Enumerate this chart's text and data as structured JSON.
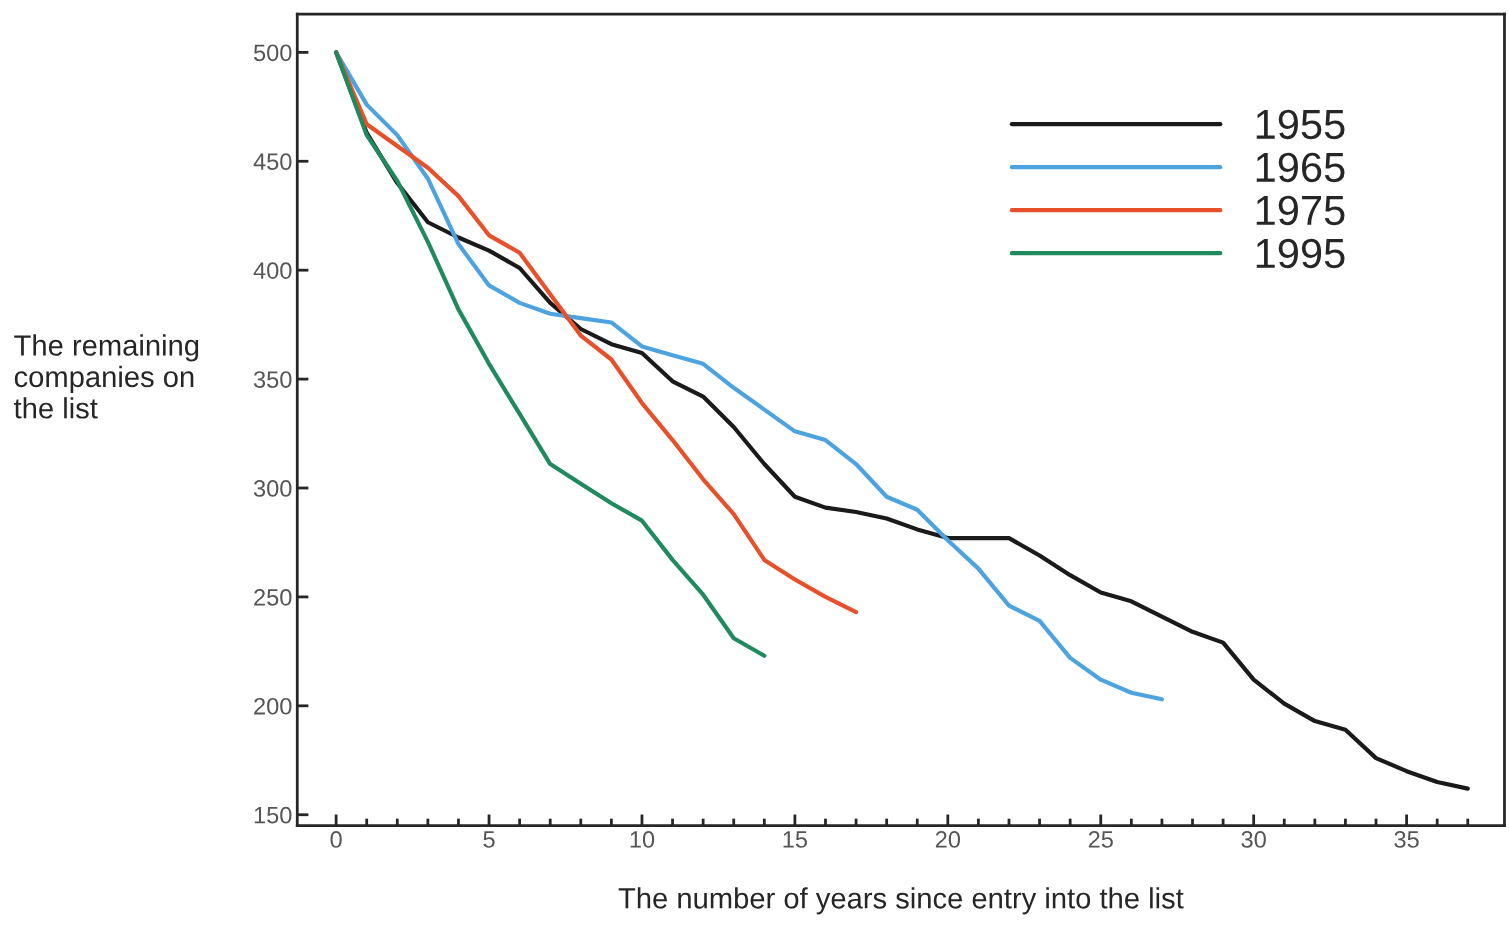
{
  "chart_data": {
    "type": "line",
    "xlabel": "The number of years since entry into the list",
    "ylabel": "The remaining\ncompanies on\nthe list",
    "xlim": [
      -1.27,
      38.2
    ],
    "ylim": [
      145,
      517.5
    ],
    "xticks": [
      0,
      {
        "value": 1,
        "label": null
      },
      {
        "value": 2,
        "label": null
      },
      {
        "value": 3,
        "label": null
      },
      {
        "value": 4,
        "label": null
      },
      5,
      {
        "value": 6,
        "label": null
      },
      {
        "value": 7,
        "label": null
      },
      {
        "value": 8,
        "label": null
      },
      {
        "value": 9,
        "label": null
      },
      10,
      {
        "value": 11,
        "label": null
      },
      {
        "value": 12,
        "label": null
      },
      {
        "value": 13,
        "label": null
      },
      {
        "value": 14,
        "label": null
      },
      15,
      {
        "value": 16,
        "label": null
      },
      {
        "value": 17,
        "label": null
      },
      {
        "value": 18,
        "label": null
      },
      {
        "value": 19,
        "label": null
      },
      20,
      {
        "value": 21,
        "label": null
      },
      {
        "value": 22,
        "label": null
      },
      {
        "value": 23,
        "label": null
      },
      {
        "value": 24,
        "label": null
      },
      25,
      {
        "value": 26,
        "label": null
      },
      {
        "value": 27,
        "label": null
      },
      {
        "value": 28,
        "label": null
      },
      {
        "value": 29,
        "label": null
      },
      30,
      {
        "value": 31,
        "label": null
      },
      {
        "value": 32,
        "label": null
      },
      {
        "value": 33,
        "label": null
      },
      {
        "value": 34,
        "label": null
      },
      35,
      {
        "value": 36,
        "label": null
      },
      {
        "value": 37,
        "label": null
      }
    ],
    "yticks": [
      150,
      200,
      250,
      300,
      350,
      400,
      450,
      500
    ],
    "grid": false,
    "legend": "top right",
    "marker": "none",
    "line_style": "solid",
    "series": [
      {
        "name": "1955",
        "color": "#1a1a1a",
        "x": [
          0,
          1,
          2,
          3,
          4,
          5,
          6,
          7,
          8,
          9,
          10,
          11,
          12,
          13,
          14,
          15,
          16,
          17,
          18,
          19,
          20,
          21,
          22,
          23,
          24,
          25,
          26,
          27,
          28,
          29,
          30,
          31,
          32,
          33,
          34,
          35,
          36,
          37
        ],
        "values": [
          500,
          463,
          440,
          422,
          415,
          409,
          401,
          385,
          373,
          366,
          362,
          349,
          342,
          328,
          311,
          296,
          291,
          289,
          286,
          281,
          277,
          277,
          277,
          269,
          260,
          252,
          248,
          241,
          234,
          229,
          212,
          201,
          193,
          189,
          176,
          170,
          165,
          162
        ]
      },
      {
        "name": "1965",
        "color": "#4da3e0",
        "x": [
          0,
          1,
          2,
          3,
          4,
          5,
          6,
          7,
          8,
          9,
          10,
          11,
          12,
          13,
          14,
          15,
          16,
          17,
          18,
          19,
          20,
          21,
          22,
          23,
          24,
          25,
          26,
          27
        ],
        "values": [
          500,
          476,
          462,
          442,
          412,
          393,
          385,
          380,
          378,
          376,
          365,
          361,
          357,
          346,
          336,
          326,
          322,
          311,
          296,
          290,
          276,
          263,
          246,
          239,
          222,
          212,
          206,
          203
        ]
      },
      {
        "name": "1975",
        "color": "#e8502a",
        "x": [
          0,
          1,
          2,
          3,
          4,
          5,
          6,
          7,
          8,
          9,
          10,
          11,
          12,
          13,
          14,
          15,
          16,
          17
        ],
        "values": [
          500,
          467,
          457,
          447,
          434,
          416,
          408,
          389,
          370,
          359,
          339,
          322,
          304,
          288,
          267,
          258,
          250,
          243
        ]
      },
      {
        "name": "1995",
        "color": "#1f8a5e",
        "x": [
          0,
          1,
          2,
          3,
          4,
          5,
          6,
          7,
          8,
          9,
          10,
          11,
          12,
          13,
          14
        ],
        "values": [
          500,
          462,
          441,
          413,
          382,
          357,
          334,
          311,
          302,
          293,
          285,
          267,
          251,
          231,
          223
        ]
      }
    ]
  }
}
